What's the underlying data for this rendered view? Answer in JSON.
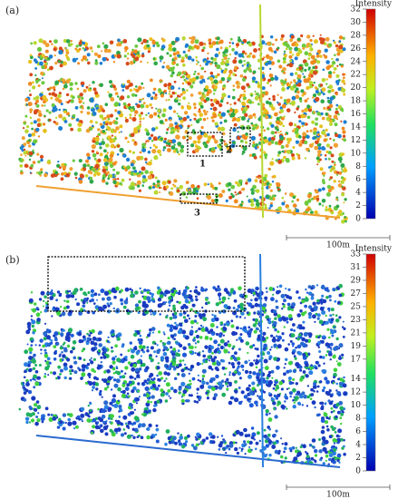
{
  "panels": [
    {
      "label": "(a)",
      "colorbar": {
        "title": "Intensity",
        "lim": [
          0,
          32
        ],
        "ticks": [
          0,
          2,
          4,
          6,
          8,
          10,
          12,
          14,
          16,
          18,
          20,
          22,
          24,
          26,
          28,
          30,
          32
        ]
      },
      "scalebar": "100m",
      "annotations": [
        "1",
        "2",
        "3"
      ]
    },
    {
      "label": "(b)",
      "colorbar": {
        "title": "Intensity",
        "lim": [
          0,
          33
        ],
        "ticks": [
          0,
          2,
          4,
          6,
          8,
          10,
          12,
          14,
          17,
          19,
          21,
          23,
          25,
          27,
          29,
          31,
          33
        ]
      },
      "scalebar": "100m"
    }
  ]
}
